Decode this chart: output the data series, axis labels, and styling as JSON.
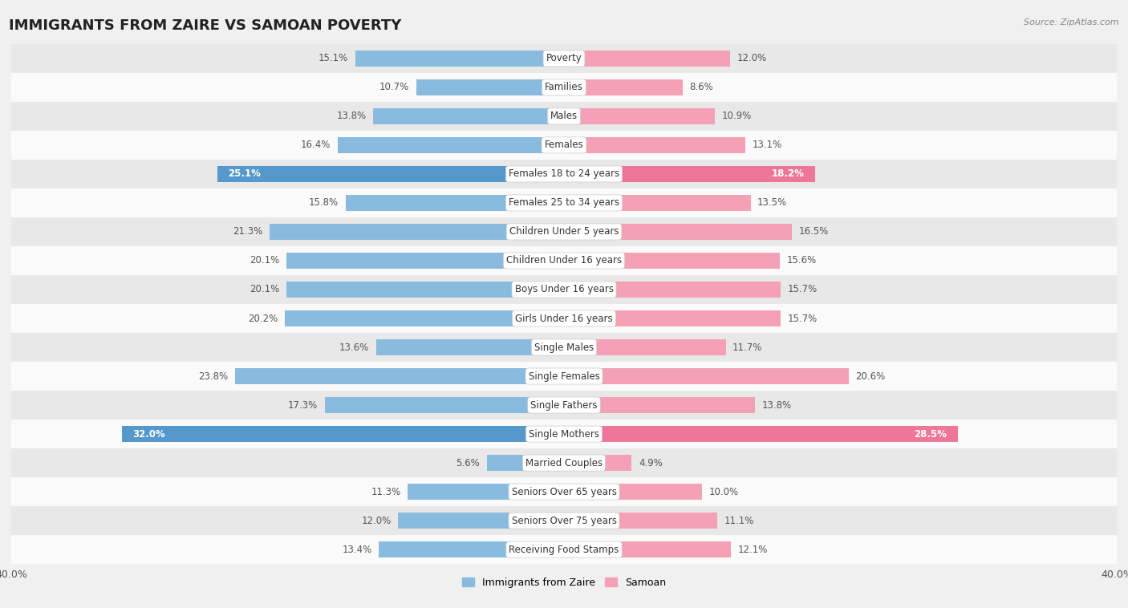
{
  "title": "IMMIGRANTS FROM ZAIRE VS SAMOAN POVERTY",
  "source": "Source: ZipAtlas.com",
  "categories": [
    "Poverty",
    "Families",
    "Males",
    "Females",
    "Females 18 to 24 years",
    "Females 25 to 34 years",
    "Children Under 5 years",
    "Children Under 16 years",
    "Boys Under 16 years",
    "Girls Under 16 years",
    "Single Males",
    "Single Females",
    "Single Fathers",
    "Single Mothers",
    "Married Couples",
    "Seniors Over 65 years",
    "Seniors Over 75 years",
    "Receiving Food Stamps"
  ],
  "zaire_values": [
    15.1,
    10.7,
    13.8,
    16.4,
    25.1,
    15.8,
    21.3,
    20.1,
    20.1,
    20.2,
    13.6,
    23.8,
    17.3,
    32.0,
    5.6,
    11.3,
    12.0,
    13.4
  ],
  "samoan_values": [
    12.0,
    8.6,
    10.9,
    13.1,
    18.2,
    13.5,
    16.5,
    15.6,
    15.7,
    15.7,
    11.7,
    20.6,
    13.8,
    28.5,
    4.9,
    10.0,
    11.1,
    12.1
  ],
  "zaire_color": "#88BBDD",
  "samoan_color": "#F4A0B5",
  "zaire_highlight_color": "#5599CC",
  "samoan_highlight_color": "#EE7799",
  "highlight_rows": [
    4,
    13
  ],
  "axis_max": 40.0,
  "background_color": "#f0f0f0",
  "row_bg_light": "#fafafa",
  "row_bg_dark": "#e8e8e8",
  "legend_zaire": "Immigrants from Zaire",
  "legend_samoan": "Samoan"
}
